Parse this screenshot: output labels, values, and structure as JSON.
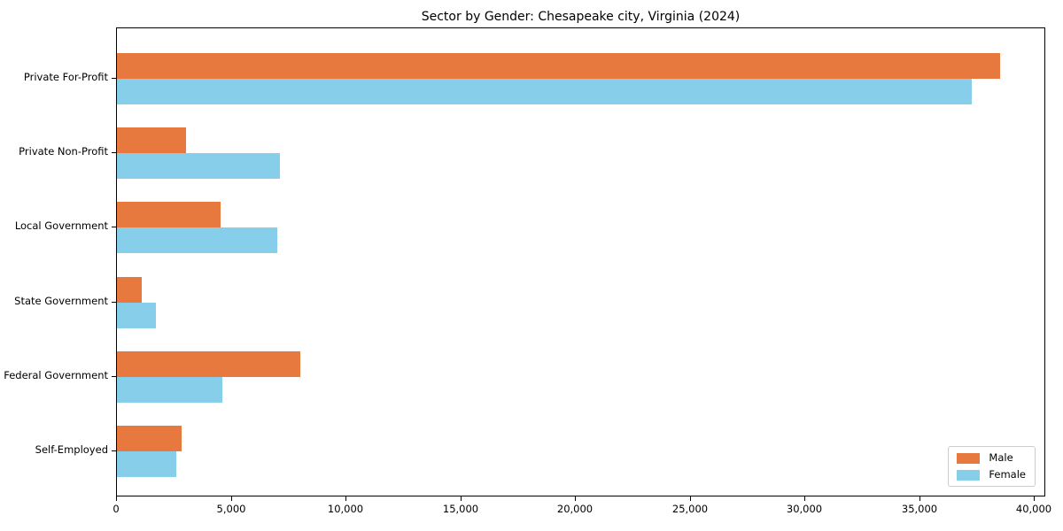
{
  "chart_data": {
    "type": "bar",
    "orientation": "horizontal",
    "title": "Sector by Gender: Chesapeake city, Virginia (2024)",
    "categories": [
      "Private For-Profit",
      "Private Non-Profit",
      "Local Government",
      "State Government",
      "Federal Government",
      "Self-Employed"
    ],
    "series": [
      {
        "name": "Male",
        "color": "#e8793e",
        "values": [
          38500,
          3000,
          4500,
          1100,
          8000,
          2800
        ]
      },
      {
        "name": "Female",
        "color": "#87ceeb",
        "values": [
          37250,
          7100,
          7000,
          1700,
          4600,
          2600
        ]
      }
    ],
    "xlabel": "",
    "ylabel": "",
    "xlim": [
      0,
      40500
    ],
    "x_ticks": [
      {
        "value": 0,
        "label": "0"
      },
      {
        "value": 5000,
        "label": "5,000"
      },
      {
        "value": 10000,
        "label": "10,000"
      },
      {
        "value": 15000,
        "label": "15,000"
      },
      {
        "value": 20000,
        "label": "20,000"
      },
      {
        "value": 25000,
        "label": "25,000"
      },
      {
        "value": 30000,
        "label": "30,000"
      },
      {
        "value": 35000,
        "label": "35,000"
      },
      {
        "value": 40000,
        "label": "40,000"
      }
    ],
    "grid": false,
    "legend_position": "lower right",
    "spine_color": "#000000",
    "background_color": "#ffffff"
  }
}
